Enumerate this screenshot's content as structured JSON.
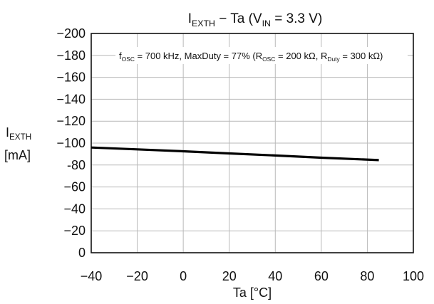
{
  "chart_data": {
    "type": "line",
    "title": {
      "p1": "I",
      "p1_sub": "EXTH",
      "p2": " − Ta (V",
      "p2_sub": "IN",
      "p3": " = 3.3 V)"
    },
    "annotation": {
      "p1": "f",
      "p1_sub": "OSC",
      "p2": " = 700 kHz, MaxDuty = 77% (R",
      "p2_sub": "OSC",
      "p3": " = 200 kΩ, R",
      "p3_sub": "Duty",
      "p4": " = 300 kΩ)"
    },
    "xlabel": "Ta [°C]",
    "ylabel": {
      "main": "I",
      "sub": "EXTH",
      "unit": "[mA]"
    },
    "xlim": [
      -40,
      100
    ],
    "ylim": [
      0,
      -200
    ],
    "x_ticks": [
      "−40",
      "−20",
      "0",
      "20",
      "40",
      "60",
      "80",
      "100"
    ],
    "y_ticks": [
      "−200",
      "−180",
      "−160",
      "−140",
      "−120",
      "−100",
      "-80",
      "−60",
      "−40",
      "−20",
      "0"
    ],
    "y_tick_values": [
      -200,
      -180,
      -160,
      -140,
      -120,
      -100,
      -80,
      -60,
      -40,
      -20,
      0
    ],
    "x_tick_values": [
      -40,
      -20,
      0,
      20,
      40,
      60,
      80,
      100
    ],
    "grid": true,
    "series": [
      {
        "x": [
          -40,
          -20,
          0,
          20,
          40,
          60,
          85
        ],
        "y": [
          -96,
          -94.3,
          -92.5,
          -90.6,
          -88.7,
          -86.7,
          -84.5
        ]
      }
    ],
    "colors": {
      "series": "#000000",
      "grid": "#b9b9b9",
      "axis": "#111111"
    }
  }
}
